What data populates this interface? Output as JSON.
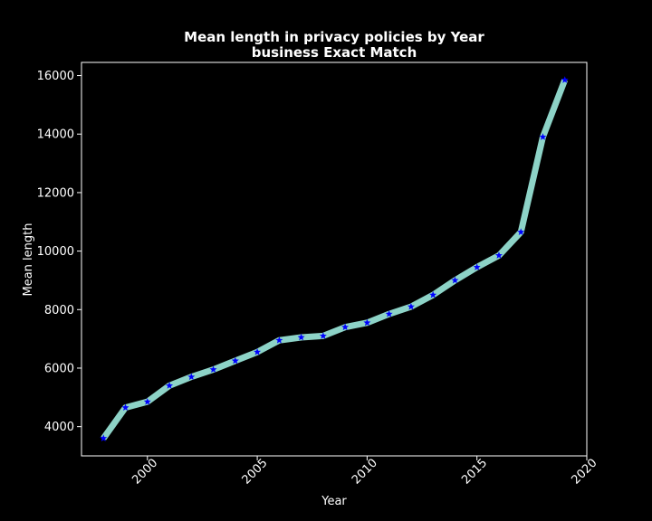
{
  "chart_data": {
    "type": "line",
    "title": "Mean length in privacy policies by Year",
    "subtitle": "business Exact Match",
    "xlabel": "Year",
    "ylabel": "Mean length",
    "xlim": [
      1997,
      2020
    ],
    "ylim": [
      3000,
      16450
    ],
    "x_ticks": [
      2000,
      2005,
      2010,
      2015,
      2020
    ],
    "x_tick_labels": [
      "2000",
      "2005",
      "2010",
      "2015",
      "2020"
    ],
    "y_ticks": [
      4000,
      6000,
      8000,
      10000,
      12000,
      14000,
      16000
    ],
    "y_tick_labels": [
      "4000",
      "6000",
      "8000",
      "10000",
      "12000",
      "14000",
      "16000"
    ],
    "grid": false,
    "background": "#000000",
    "line_color": "#8dd3c7",
    "marker_color": "#0000ff",
    "marker": "star",
    "x": [
      1998,
      1999,
      2000,
      2001,
      2002,
      2003,
      2004,
      2005,
      2006,
      2007,
      2008,
      2009,
      2010,
      2011,
      2012,
      2013,
      2014,
      2015,
      2016,
      2017,
      2018,
      2019
    ],
    "values": [
      3600,
      4650,
      4850,
      5400,
      5700,
      5950,
      6250,
      6550,
      6950,
      7050,
      7100,
      7400,
      7550,
      7850,
      8100,
      8500,
      9000,
      9450,
      9850,
      10650,
      13900,
      15850
    ]
  }
}
